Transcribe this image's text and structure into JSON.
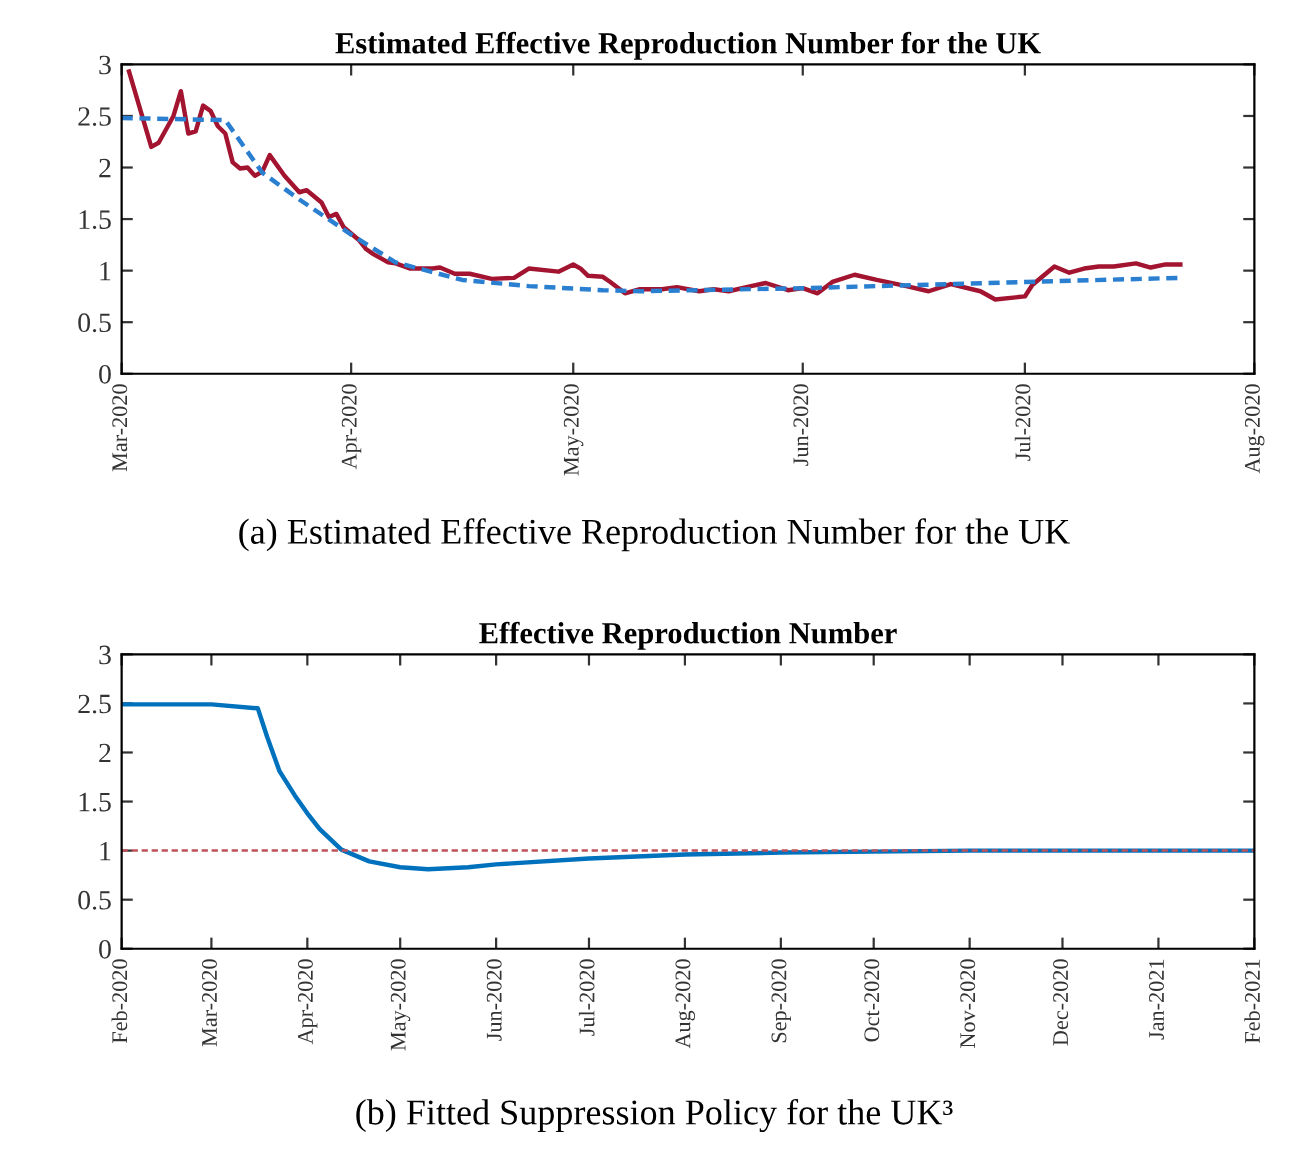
{
  "chart_data": [
    {
      "type": "line",
      "title": "Estimated Effective Reproduction Number for the UK",
      "series": [
        {
          "color": "#a2142f",
          "line_style": "solid",
          "x": [
            "2020-03-02",
            "2020-03-05",
            "2020-03-06",
            "2020-03-08",
            "2020-03-09",
            "2020-03-10",
            "2020-03-11",
            "2020-03-12",
            "2020-03-13",
            "2020-03-14",
            "2020-03-15",
            "2020-03-16",
            "2020-03-17",
            "2020-03-18",
            "2020-03-19",
            "2020-03-20",
            "2020-03-21",
            "2020-03-23",
            "2020-03-25",
            "2020-03-26",
            "2020-03-28",
            "2020-03-29",
            "2020-03-30",
            "2020-03-31",
            "2020-04-02",
            "2020-04-03",
            "2020-04-04",
            "2020-04-06",
            "2020-04-07",
            "2020-04-09",
            "2020-04-12",
            "2020-04-13",
            "2020-04-15",
            "2020-04-17",
            "2020-04-20",
            "2020-04-23",
            "2020-04-25",
            "2020-04-29",
            "2020-05-01",
            "2020-05-02",
            "2020-05-03",
            "2020-05-05",
            "2020-05-06",
            "2020-05-08",
            "2020-05-10",
            "2020-05-13",
            "2020-05-15",
            "2020-05-18",
            "2020-05-20",
            "2020-05-22",
            "2020-05-25",
            "2020-05-27",
            "2020-05-30",
            "2020-06-01",
            "2020-06-03",
            "2020-06-05",
            "2020-06-08",
            "2020-06-11",
            "2020-06-15",
            "2020-06-18",
            "2020-06-21",
            "2020-06-25",
            "2020-06-27",
            "2020-07-01",
            "2020-07-02",
            "2020-07-05",
            "2020-07-07",
            "2020-07-09",
            "2020-07-11",
            "2020-07-13",
            "2020-07-16",
            "2020-07-18",
            "2020-07-20",
            "2020-07-22"
          ],
          "values": [
            2.93,
            2.2,
            2.24,
            2.5,
            2.74,
            2.33,
            2.35,
            2.6,
            2.55,
            2.4,
            2.33,
            2.05,
            1.99,
            2.0,
            1.92,
            1.96,
            2.12,
            1.92,
            1.76,
            1.78,
            1.66,
            1.52,
            1.55,
            1.42,
            1.3,
            1.21,
            1.16,
            1.08,
            1.07,
            1.02,
            1.02,
            1.03,
            0.97,
            0.97,
            0.92,
            0.93,
            1.02,
            0.99,
            1.06,
            1.02,
            0.95,
            0.94,
            0.89,
            0.78,
            0.82,
            0.82,
            0.84,
            0.8,
            0.82,
            0.8,
            0.85,
            0.88,
            0.81,
            0.83,
            0.78,
            0.89,
            0.96,
            0.91,
            0.85,
            0.8,
            0.87,
            0.8,
            0.72,
            0.75,
            0.86,
            1.04,
            0.98,
            1.02,
            1.04,
            1.04,
            1.07,
            1.03,
            1.06,
            1.06
          ]
        },
        {
          "color": "#2a7fd0",
          "line_style": "dashed",
          "x": [
            "2020-03-01",
            "2020-03-15",
            "2020-03-20",
            "2020-03-25",
            "2020-04-01",
            "2020-04-07",
            "2020-04-16",
            "2020-04-25",
            "2020-05-05",
            "2020-05-10",
            "2020-06-01",
            "2020-07-01",
            "2020-07-22"
          ],
          "values": [
            2.48,
            2.46,
            1.95,
            1.69,
            1.35,
            1.08,
            0.91,
            0.85,
            0.81,
            0.8,
            0.83,
            0.89,
            0.93
          ]
        }
      ],
      "xlim": [
        "2020-03-01",
        "2020-08-01"
      ],
      "xticks": [
        {
          "value": "2020-03-01",
          "label": "Mar-2020"
        },
        {
          "value": "2020-04-01",
          "label": "Apr-2020"
        },
        {
          "value": "2020-05-01",
          "label": "May-2020"
        },
        {
          "value": "2020-06-01",
          "label": "Jun-2020"
        },
        {
          "value": "2020-07-01",
          "label": "Jul-2020"
        },
        {
          "value": "2020-08-01",
          "label": "Aug-2020"
        }
      ],
      "ylim": [
        0,
        3
      ],
      "yticks": [
        0,
        0.5,
        1,
        1.5,
        2,
        2.5,
        3
      ],
      "grid": false,
      "annotations": [
        "(a) Estimated Effective Reproduction Number for the UK"
      ]
    },
    {
      "type": "line",
      "title": "Effective Reproduction Number",
      "series": [
        {
          "color": "#0072bd",
          "line_style": "solid",
          "x": [
            "2020-02-01",
            "2020-03-01",
            "2020-03-16",
            "2020-03-19",
            "2020-03-23",
            "2020-03-28",
            "2020-04-01",
            "2020-04-05",
            "2020-04-12",
            "2020-04-21",
            "2020-05-01",
            "2020-05-10",
            "2020-05-23",
            "2020-06-01",
            "2020-07-01",
            "2020-08-01",
            "2020-09-01",
            "2020-10-01",
            "2020-11-01",
            "2021-02-01"
          ],
          "values": [
            2.49,
            2.49,
            2.45,
            2.16,
            1.81,
            1.56,
            1.38,
            1.22,
            1.01,
            0.89,
            0.83,
            0.81,
            0.83,
            0.86,
            0.92,
            0.96,
            0.98,
            0.99,
            1.0,
            1.0
          ]
        }
      ],
      "ref_lines": [
        {
          "axis": "y",
          "value": 1,
          "color": "#c0505a",
          "line_style": "dashed"
        }
      ],
      "xlim": [
        "2020-02-01",
        "2021-02-01"
      ],
      "xticks": [
        {
          "value": "2020-02-01",
          "label": "Feb-2020"
        },
        {
          "value": "2020-03-01",
          "label": "Mar-2020"
        },
        {
          "value": "2020-04-01",
          "label": "Apr-2020"
        },
        {
          "value": "2020-05-01",
          "label": "May-2020"
        },
        {
          "value": "2020-06-01",
          "label": "Jun-2020"
        },
        {
          "value": "2020-07-01",
          "label": "Jul-2020"
        },
        {
          "value": "2020-08-01",
          "label": "Aug-2020"
        },
        {
          "value": "2020-09-01",
          "label": "Sep-2020"
        },
        {
          "value": "2020-10-01",
          "label": "Oct-2020"
        },
        {
          "value": "2020-11-01",
          "label": "Nov-2020"
        },
        {
          "value": "2020-12-01",
          "label": "Dec-2020"
        },
        {
          "value": "2021-01-01",
          "label": "Jan-2021"
        },
        {
          "value": "2021-02-01",
          "label": "Feb-2021"
        }
      ],
      "ylim": [
        0,
        3
      ],
      "yticks": [
        0,
        0.5,
        1,
        1.5,
        2,
        2.5,
        3
      ],
      "grid": false,
      "annotations": [
        "(b) Fitted Suppression Policy for the UK³"
      ]
    }
  ]
}
